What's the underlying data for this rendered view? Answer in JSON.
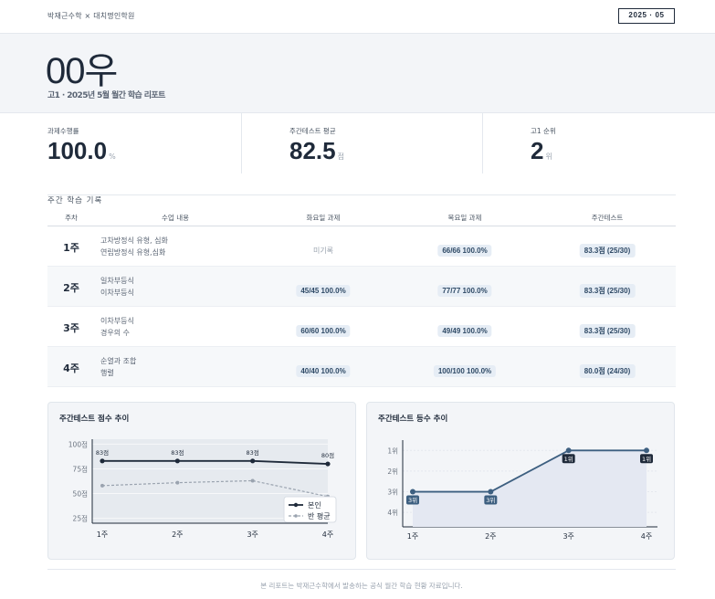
{
  "header": {
    "brand": "박재근수학 × 대치명인학원",
    "period": "2025 · 05"
  },
  "hero": {
    "student_name": "00우",
    "subtitle": "고1 · 2025년 5월 월간 학습 리포트"
  },
  "stats": [
    {
      "label": "과제수행률",
      "value": "100.0",
      "unit": "%"
    },
    {
      "label": "주간테스트 평균",
      "value": "82.5",
      "unit": "점"
    },
    {
      "label": "고1 순위",
      "value": "2",
      "unit": "위"
    }
  ],
  "weekly": {
    "section_title": "주간 학습 기록",
    "headers": [
      "주차",
      "수업 내용",
      "화요일 과제",
      "목요일 과제",
      "주간테스트"
    ],
    "rows": [
      {
        "week": "1주",
        "content": [
          "고차방정식 유형, 심화",
          "연립방정식 유형,심화"
        ],
        "tue": "미기록",
        "thu": "66/66 100.0%",
        "test": "83.3점 (25/30)"
      },
      {
        "week": "2주",
        "content": [
          "일차부등식",
          "이차부등식"
        ],
        "tue": "45/45 100.0%",
        "thu": "77/77 100.0%",
        "test": "83.3점 (25/30)"
      },
      {
        "week": "3주",
        "content": [
          "이차부등식",
          "경우의 수"
        ],
        "tue": "60/60 100.0%",
        "thu": "49/49 100.0%",
        "test": "83.3점 (25/30)"
      },
      {
        "week": "4주",
        "content": [
          "순열과 조합",
          "행렬"
        ],
        "tue": "40/40 100.0%",
        "thu": "100/100 100.0%",
        "test": "80.0점 (24/30)"
      }
    ]
  },
  "chart_data": [
    {
      "type": "line",
      "title": "주간테스트 점수 추이",
      "categories": [
        "1주",
        "2주",
        "3주",
        "4주"
      ],
      "y_ticks": [
        "25점",
        "50점",
        "75점",
        "100점"
      ],
      "ylim": [
        20,
        105
      ],
      "series": [
        {
          "name": "본인",
          "values": [
            83,
            83,
            83,
            80
          ],
          "labels": [
            "83점",
            "83점",
            "83점",
            "80점"
          ],
          "color": "#1f2a3a"
        },
        {
          "name": "반 평균",
          "values": [
            58,
            61,
            63,
            47
          ],
          "color": "#9aa3af",
          "dashed": true
        }
      ],
      "legend": "bottom-right",
      "grid": true
    },
    {
      "type": "area",
      "title": "주간테스트 등수 추이",
      "categories": [
        "1주",
        "2주",
        "3주",
        "4주"
      ],
      "y_ticks": [
        "1위",
        "2위",
        "3위",
        "4위"
      ],
      "ylim": [
        0.5,
        4.7
      ],
      "inverted": true,
      "series": [
        {
          "values": [
            3,
            3,
            1,
            1
          ],
          "labels": [
            "3위",
            "3위",
            "1위",
            "1위"
          ],
          "color": "#3d5f80"
        }
      ],
      "grid": true
    }
  ],
  "footer": "본 리포트는 박재근수학에서 발송하는 공식 월간 학습 현황 자료입니다."
}
